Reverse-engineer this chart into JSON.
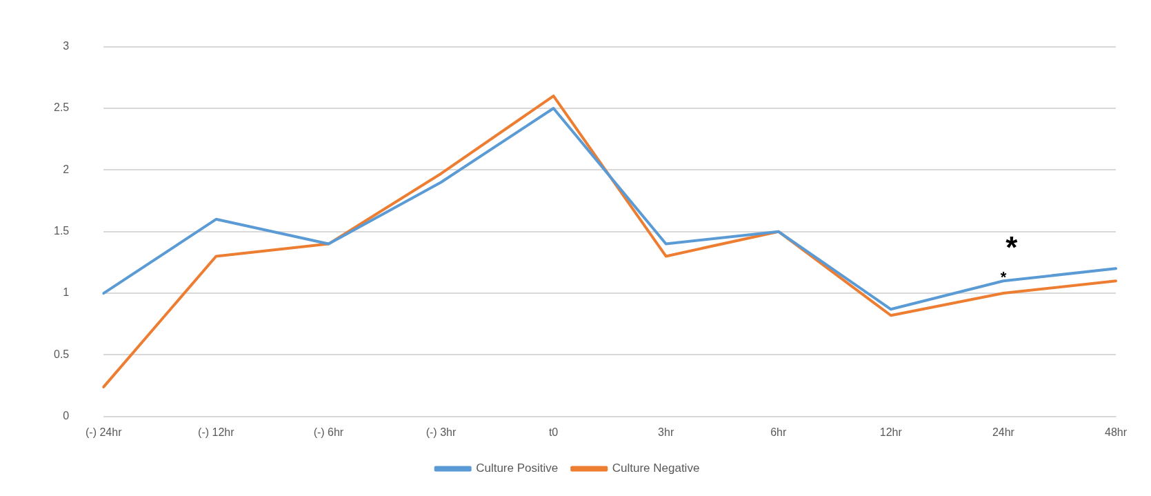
{
  "chart_data": {
    "type": "line",
    "categories": [
      "(-) 24hr",
      "(-) 12hr",
      "(-) 6hr",
      "(-) 3hr",
      "t0",
      "3hr",
      "6hr",
      "12hr",
      "24hr",
      "48hr"
    ],
    "series": [
      {
        "name": "Culture Positive",
        "color": "#5b9bd5",
        "values": [
          1.0,
          1.6,
          1.4,
          1.9,
          2.5,
          1.4,
          1.5,
          0.87,
          1.1,
          1.2
        ]
      },
      {
        "name": "Culture Negative",
        "color": "#ed7d31",
        "values": [
          0.24,
          1.3,
          1.4,
          1.97,
          2.6,
          1.3,
          1.5,
          0.82,
          1.0,
          1.1
        ]
      }
    ],
    "ylim": [
      0,
      3
    ],
    "yticks": [
      0,
      0.5,
      1,
      1.5,
      2,
      2.5,
      3
    ],
    "grid": "y",
    "legend": "bottom",
    "marker": "none",
    "line_style": "solid",
    "annotations": [
      "*",
      {
        "text": "*",
        "x": "24hr",
        "y": 1.1
      }
    ]
  }
}
